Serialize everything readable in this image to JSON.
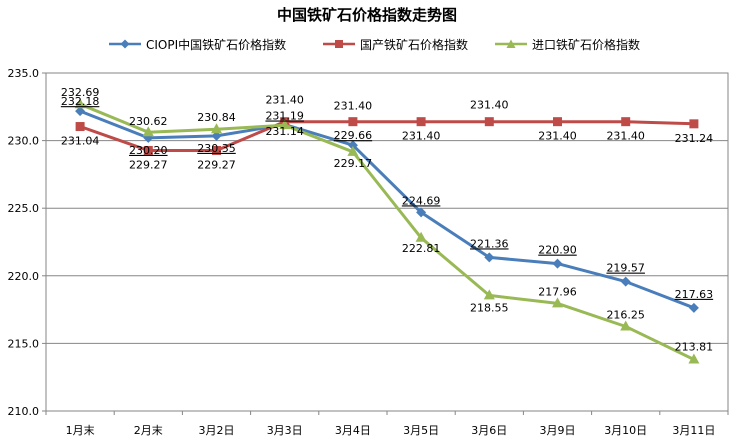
{
  "chart_data": {
    "type": "line",
    "title": "中国铁矿石价格指数走势图",
    "categories": [
      "1月末",
      "2月末",
      "3月2日",
      "3月3日",
      "3月4日",
      "3月5日",
      "3月6日",
      "3月9日",
      "3月10日",
      "3月11日"
    ],
    "ylim": [
      210.0,
      235.0
    ],
    "yticks": [
      "210.0",
      "215.0",
      "220.0",
      "225.0",
      "230.0",
      "235.0"
    ],
    "grid": true,
    "legend_position": "top",
    "series": [
      {
        "name": "CIOPI中国铁矿石价格指数",
        "color": "#4a7ebb",
        "marker": "diamond",
        "values": [
          232.18,
          230.2,
          230.35,
          231.19,
          229.66,
          224.69,
          221.36,
          220.9,
          219.57,
          217.63
        ],
        "labels": [
          "232.18",
          "230.20",
          "230.35",
          "231.19",
          "229.66",
          "224.69",
          "221.36",
          "220.90",
          "219.57",
          "217.63"
        ]
      },
      {
        "name": "国产铁矿石价格指数",
        "color": "#be4b48",
        "marker": "square",
        "values": [
          231.04,
          229.27,
          229.27,
          231.4,
          231.4,
          231.4,
          231.4,
          231.4,
          231.4,
          231.24
        ],
        "labels": [
          "231.04",
          "229.27",
          "229.27",
          "231.40",
          "231.40",
          "231.40",
          "231.40",
          "231.40",
          "231.40",
          "231.24"
        ]
      },
      {
        "name": "进口铁矿石价格指数",
        "color": "#98b954",
        "marker": "triangle",
        "values": [
          232.69,
          230.62,
          230.84,
          231.14,
          229.17,
          222.81,
          218.55,
          217.96,
          216.25,
          213.81
        ],
        "labels": [
          "232.69",
          "230.62",
          "230.84",
          "231.14",
          "229.17",
          "222.81",
          "218.55",
          "217.96",
          "216.25",
          "213.81"
        ]
      }
    ]
  }
}
